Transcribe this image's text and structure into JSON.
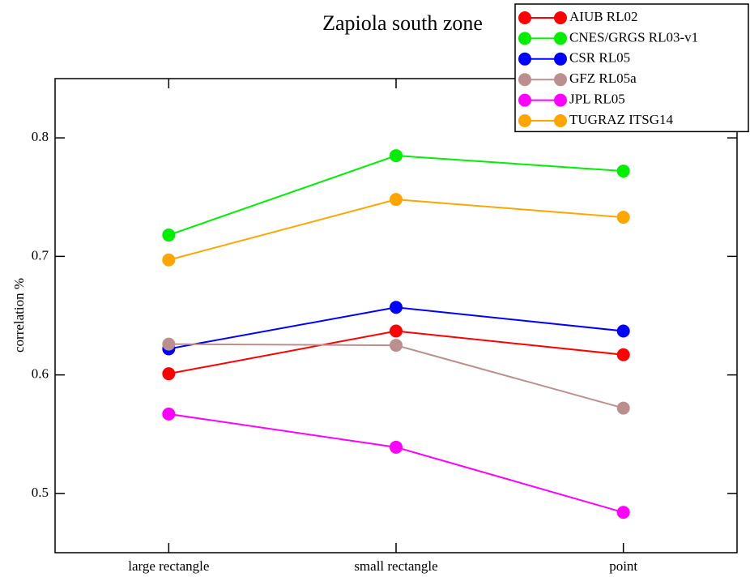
{
  "chart_data": {
    "type": "line",
    "title": "Zapiola south zone",
    "y_label": "correlation %",
    "categories": [
      "large rectangle",
      "small rectangle",
      "point"
    ],
    "series": [
      {
        "name": "AIUB RL02",
        "color": "#ff0000",
        "values": [
          0.601,
          0.637,
          0.617
        ]
      },
      {
        "name": "CNES/GRGS RL03-v1",
        "color": "#00ee00",
        "values": [
          0.718,
          0.785,
          0.772
        ]
      },
      {
        "name": "CSR RL05",
        "color": "#0000ff",
        "values": [
          0.622,
          0.657,
          0.637
        ]
      },
      {
        "name": "GFZ RL05a",
        "color": "#bc8f8f",
        "values": [
          0.626,
          0.625,
          0.572
        ]
      },
      {
        "name": "JPL RL05",
        "color": "#ff00ff",
        "values": [
          0.567,
          0.539,
          0.484
        ]
      },
      {
        "name": "TUGRAZ ITSG14",
        "color": "#ffa500",
        "values": [
          0.697,
          0.748,
          0.733
        ]
      }
    ],
    "ylim": [
      0.45,
      0.85
    ],
    "yticks": [
      0.5,
      0.6,
      0.7,
      0.8
    ],
    "legend": "upper right",
    "grid": false
  }
}
